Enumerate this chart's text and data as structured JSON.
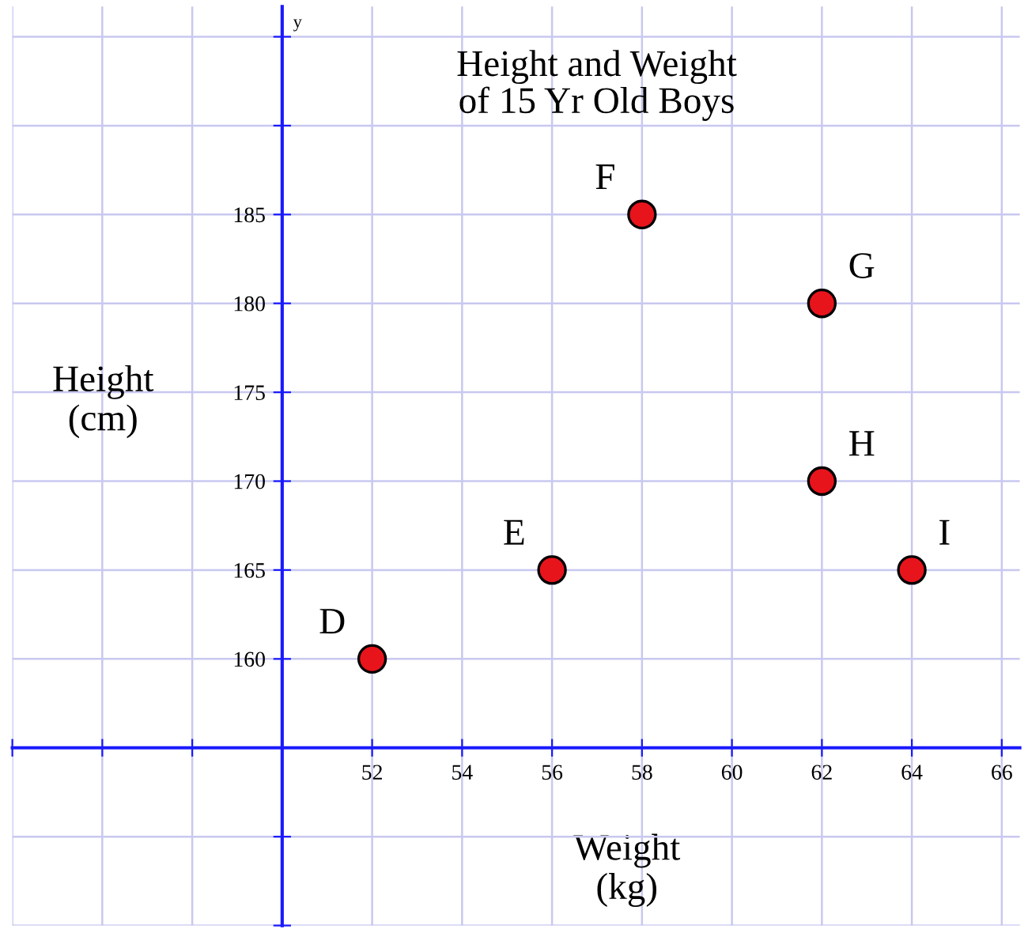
{
  "chart_data": {
    "type": "scatter",
    "title": "Height and Weight\nof 15 Yr Old Boys",
    "xlabel": "Weight\n(kg)",
    "ylabel": "Height\n(cm)",
    "x": [
      52,
      56,
      58,
      62,
      62,
      64
    ],
    "series": [
      {
        "color": "#e8141c",
        "values": [
          160,
          165,
          185,
          180,
          170,
          165
        ]
      }
    ],
    "annotations": [
      "y",
      {
        "text": "D",
        "x": 52,
        "y": 160
      },
      {
        "text": "E",
        "x": 56,
        "y": 165
      },
      {
        "text": "F",
        "x": 58,
        "y": 185
      },
      {
        "text": "G",
        "x": 62,
        "y": 180
      },
      {
        "text": "H",
        "x": 62,
        "y": 170
      },
      {
        "text": "I",
        "x": 64,
        "y": 165
      }
    ],
    "xlim": [
      44,
      66.4
    ],
    "ylim": [
      145,
      196.7
    ],
    "xticks": [
      {
        "value": 44,
        "label": null
      },
      {
        "value": 46,
        "label": null
      },
      {
        "value": 48,
        "label": null
      },
      {
        "value": 50,
        "label": null
      },
      52,
      54,
      56,
      58,
      60,
      62,
      64,
      66
    ],
    "yticks": [
      {
        "value": 145,
        "label": null
      },
      {
        "value": 150,
        "label": null
      },
      {
        "value": 155,
        "label": null
      },
      160,
      165,
      170,
      175,
      180,
      185,
      {
        "value": 190,
        "label": null
      },
      {
        "value": 195,
        "label": null
      }
    ],
    "grid": true,
    "legend": false,
    "marker": "circle"
  }
}
